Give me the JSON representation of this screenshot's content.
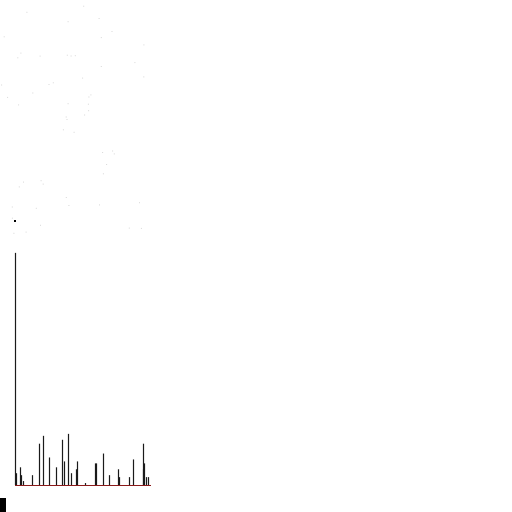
{
  "chart_data": {
    "type": "bar",
    "title": "",
    "xlabel": "",
    "ylabel": "",
    "grid": false,
    "legend": "none",
    "baseline_color": "#8b1a1a",
    "bar_color": "#1a1a1a",
    "ylim": [
      0,
      240
    ],
    "x": [
      0,
      1,
      5,
      6,
      8,
      17,
      24,
      28,
      34,
      41,
      47,
      49,
      53,
      56,
      61,
      62,
      70,
      80,
      81,
      88,
      94,
      103,
      104,
      114,
      118,
      128,
      128,
      129,
      131,
      133
    ],
    "values": [
      236,
      12,
      18,
      10,
      4,
      10,
      42,
      50,
      28,
      18,
      46,
      24,
      52,
      12,
      16,
      24,
      2,
      22,
      22,
      32,
      10,
      16,
      8,
      8,
      26,
      42,
      16,
      22,
      8,
      8
    ]
  }
}
